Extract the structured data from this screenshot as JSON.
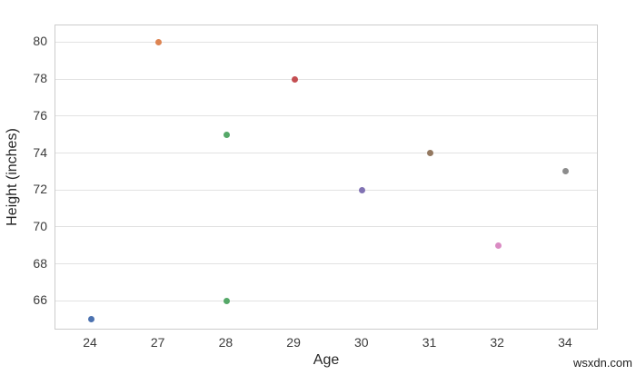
{
  "figure": {
    "watermark": "wsxdn.com"
  },
  "colors": {
    "background": "#ffffff",
    "plot_border": "#cccccc",
    "gridline": "#e2e2e2",
    "tick_text": "#3b3b3b",
    "axis_label_text": "#262626",
    "watermark_text": "#222222"
  },
  "chart_data": {
    "type": "scatter",
    "title": "",
    "xlabel": "Age",
    "ylabel": "Height (inches)",
    "x_tick_labels": [
      "24",
      "27",
      "28",
      "29",
      "30",
      "31",
      "32",
      "34"
    ],
    "x_axis_note": "categorical axis: age values evenly spaced",
    "y_ticks": [
      66,
      68,
      70,
      72,
      74,
      76,
      78,
      80
    ],
    "ylim": [
      64.4,
      80.9
    ],
    "grid": "horizontal gridlines only",
    "legend": "none",
    "marker_diameter_px": 7,
    "palette": "seaborn-deep (hue by age)",
    "points": [
      {
        "x": "24",
        "y": 65,
        "color": "#4C72B0"
      },
      {
        "x": "27",
        "y": 80,
        "color": "#DD8452"
      },
      {
        "x": "28",
        "y": 75,
        "color": "#55A868"
      },
      {
        "x": "28",
        "y": 66,
        "color": "#55A868"
      },
      {
        "x": "29",
        "y": 78,
        "color": "#C44E52"
      },
      {
        "x": "30",
        "y": 72,
        "color": "#8172B3"
      },
      {
        "x": "31",
        "y": 74,
        "color": "#937860"
      },
      {
        "x": "32",
        "y": 69,
        "color": "#DA8BC3"
      },
      {
        "x": "34",
        "y": 73,
        "color": "#8C8C8C"
      }
    ]
  }
}
